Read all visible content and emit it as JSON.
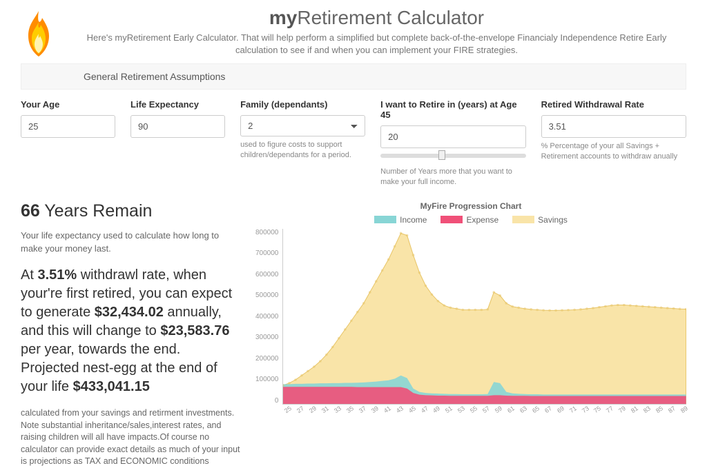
{
  "header": {
    "title_bold": "my",
    "title_rest": "Retirement Calculator",
    "subtitle": "Here's myRetirement Early Calculator. That will help perform a simplified but complete back-of-the-envelope Financialy Independence Retire Early calculation to see if and when you can implement your FIRE strategies."
  },
  "assumptions_label": "General Retirement Assumptions",
  "inputs": {
    "age": {
      "label": "Your Age",
      "value": "25"
    },
    "life_expectancy": {
      "label": "Life Expectancy",
      "value": "90"
    },
    "family": {
      "label": "Family (dependants)",
      "value": "2",
      "help": "used to figure costs to support children/dependants for a period."
    },
    "retire": {
      "label": "I want to Retire in (years) at Age 45",
      "value": "20",
      "help": "Number of Years more that you want to make your full income.",
      "slider_pct": 40
    },
    "withdrawal": {
      "label": "Retired Withdrawal Rate",
      "value": "3.51",
      "help": "% Percentage of your all Savings + Retirement accounts to withdraw anually"
    }
  },
  "summary": {
    "years_num": "66",
    "years_label": " Years Remain",
    "life_desc": "Your life expectancy used to calculate how long to make your money last.",
    "p_at": "At ",
    "p_rate": "3.51%",
    "p_t1": " withdrawl rate, when your're first retired, you can expect to generate ",
    "p_amt1": "$32,434.02",
    "p_t2": " annually, and this will change to ",
    "p_amt2": "$23,583.76",
    "p_t3": " per year, towards the end. Projected nest-egg at the end of your life ",
    "p_amt3": "$433,041.15",
    "footnote": "calculated from your savings and retirment investments. Note substantial inheritance/sales,interest rates, and raising children will all have impacts.Of course no calculator can provide exact details as much of your input is projections as TAX and ECONOMIC conditions"
  },
  "chart": {
    "title": "MyFire Progression Chart",
    "legend": [
      {
        "label": "Income",
        "color": "#88d5d5"
      },
      {
        "label": "Expense",
        "color": "#f05078"
      },
      {
        "label": "Savings",
        "color": "#f9e4a8"
      }
    ],
    "colors": {
      "income": "#88d5d5",
      "expense": "#f05078",
      "savings_fill": "#f9e4a8",
      "savings_line": "#e8c568",
      "grid": "#eeeeee",
      "axis": "#cccccc",
      "text": "#999999"
    },
    "ylim": [
      0,
      800000
    ],
    "ytick_step": 100000,
    "yticks": [
      "800000",
      "700000",
      "600000",
      "500000",
      "400000",
      "300000",
      "200000",
      "100000",
      "0"
    ],
    "x_start": 25,
    "x_end": 90,
    "x_step": 2,
    "savings": [
      85000,
      95000,
      110000,
      130000,
      150000,
      170000,
      195000,
      225000,
      260000,
      300000,
      340000,
      380000,
      420000,
      460000,
      510000,
      560000,
      610000,
      660000,
      720000,
      780000,
      770000,
      680000,
      600000,
      540000,
      500000,
      470000,
      450000,
      440000,
      435000,
      430000,
      430000,
      430000,
      430000,
      432000,
      510000,
      495000,
      460000,
      445000,
      440000,
      435000,
      432000,
      430000,
      428000,
      427000,
      427000,
      428000,
      429000,
      430000,
      432000,
      435000,
      438000,
      442000,
      446000,
      450000,
      452000,
      452000,
      450000,
      448000,
      446000,
      444000,
      442000,
      440000,
      438000,
      436000,
      434000,
      433000
    ],
    "income": [
      90000,
      90000,
      92000,
      92000,
      93000,
      93000,
      94000,
      94000,
      95000,
      95000,
      96000,
      96000,
      97000,
      98000,
      100000,
      102000,
      105000,
      108000,
      115000,
      130000,
      118000,
      70000,
      55000,
      50000,
      48000,
      47000,
      46000,
      45000,
      45000,
      44000,
      44000,
      44000,
      44000,
      45000,
      100000,
      95000,
      55000,
      48000,
      46000,
      45000,
      44000,
      44000,
      43000,
      43000,
      43000,
      43000,
      43000,
      43000,
      43000,
      43000,
      43000,
      43000,
      43000,
      43000,
      43000,
      43000,
      43000,
      43000,
      43000,
      43000,
      43000,
      43000,
      43000,
      43000,
      43000,
      43000
    ],
    "expense": [
      78000,
      78000,
      78000,
      78000,
      78000,
      78000,
      78000,
      78000,
      78000,
      78000,
      78000,
      78000,
      77000,
      77000,
      77000,
      77000,
      77000,
      77000,
      77000,
      77000,
      70000,
      50000,
      42000,
      40000,
      39000,
      38000,
      38000,
      37000,
      37000,
      37000,
      37000,
      37000,
      37000,
      37000,
      40000,
      40000,
      38000,
      37000,
      37000,
      37000,
      36000,
      36000,
      36000,
      36000,
      36000,
      36000,
      36000,
      36000,
      36000,
      36000,
      36000,
      36000,
      36000,
      36000,
      36000,
      36000,
      36000,
      36000,
      36000,
      36000,
      36000,
      36000,
      36000,
      36000,
      36000,
      36000
    ]
  }
}
